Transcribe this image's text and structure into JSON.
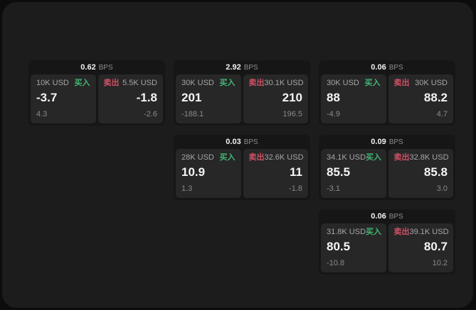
{
  "labels": {
    "bps": "BPS",
    "buy": "买入",
    "sell": "卖出"
  },
  "colors": {
    "background": "#0c0c0c",
    "panel": "#1c1c1c",
    "card": "#161616",
    "subpanel": "#272727",
    "buy": "#42b573",
    "sell": "#d15064"
  },
  "cards": [
    {
      "bps": "0.62",
      "buy": {
        "amount": "10K USD",
        "value": "-3.7",
        "sub": "4.3"
      },
      "sell": {
        "amount": "5.5K USD",
        "value": "-1.8",
        "sub": "-2.6"
      }
    },
    {
      "bps": "2.92",
      "buy": {
        "amount": "30K USD",
        "value": "201",
        "sub": "-188.1"
      },
      "sell": {
        "amount": "30.1K USD",
        "value": "210",
        "sub": "196.5"
      }
    },
    {
      "bps": "0.06",
      "buy": {
        "amount": "30K USD",
        "value": "88",
        "sub": "-4.9"
      },
      "sell": {
        "amount": "30K USD",
        "value": "88.2",
        "sub": "4.7"
      }
    },
    {
      "bps": "0.03",
      "buy": {
        "amount": "28K USD",
        "value": "10.9",
        "sub": "1.3"
      },
      "sell": {
        "amount": "32.6K USD",
        "value": "11",
        "sub": "-1.8"
      }
    },
    {
      "bps": "0.09",
      "buy": {
        "amount": "34.1K USD",
        "value": "85.5",
        "sub": "-3.1"
      },
      "sell": {
        "amount": "32.8K USD",
        "value": "85.8",
        "sub": "3.0"
      }
    },
    {
      "bps": "0.06",
      "buy": {
        "amount": "31.8K USD",
        "value": "80.5",
        "sub": "-10.8"
      },
      "sell": {
        "amount": "39.1K USD",
        "value": "80.7",
        "sub": "10.2"
      }
    }
  ]
}
